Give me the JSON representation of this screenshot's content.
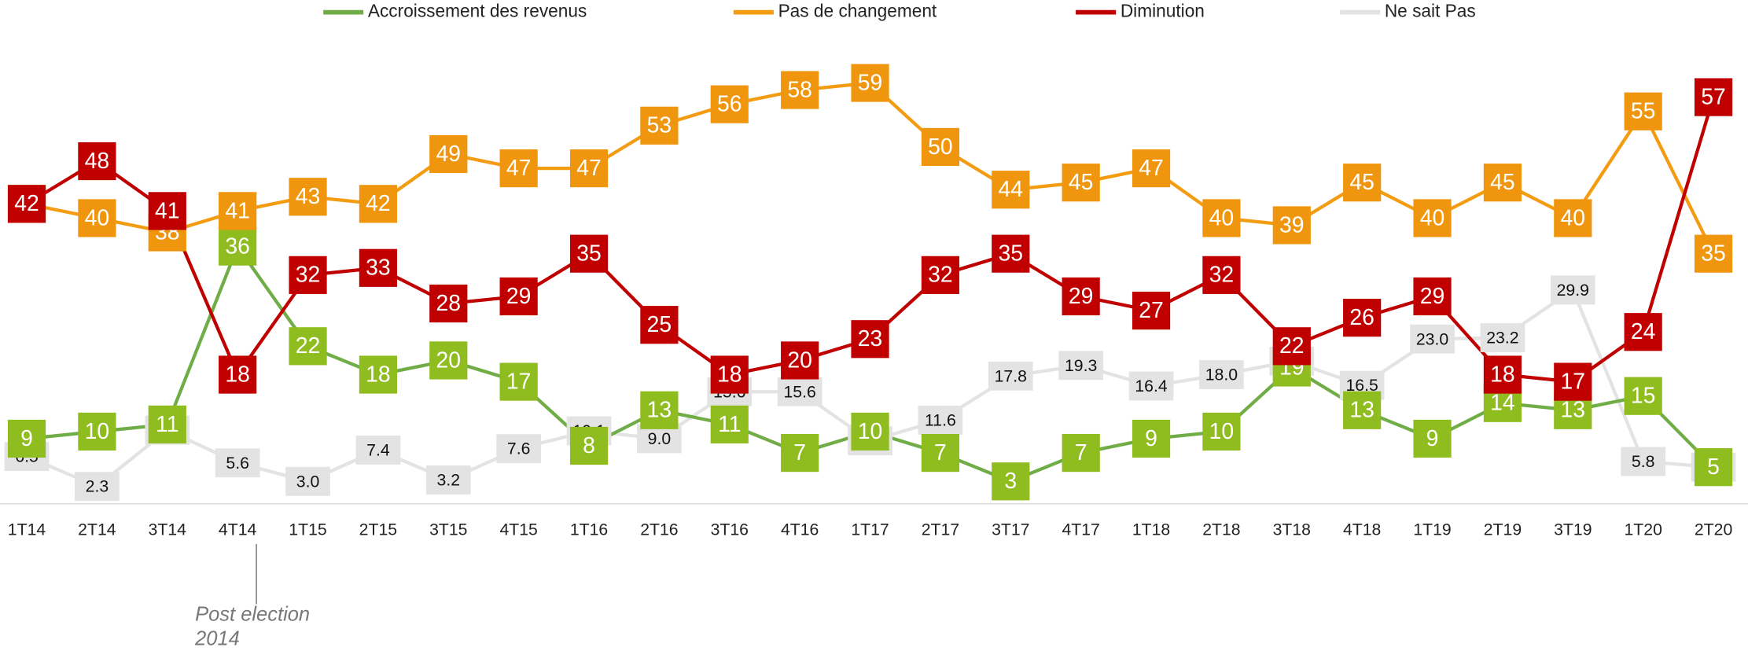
{
  "chart_data": {
    "type": "line",
    "categories": [
      "1T14",
      "2T14",
      "3T14",
      "4T14",
      "1T15",
      "2T15",
      "3T15",
      "4T15",
      "1T16",
      "2T16",
      "3T16",
      "4T16",
      "1T17",
      "2T17",
      "3T17",
      "4T17",
      "1T18",
      "2T18",
      "3T18",
      "4T18",
      "1T19",
      "2T19",
      "3T19",
      "1T20",
      "2T20"
    ],
    "series": [
      {
        "name": "Accroissement des revenus",
        "color": "#70ad47",
        "label_color": "#8fbc1e",
        "values": [
          9,
          10,
          11,
          36,
          22,
          18,
          20,
          17,
          8,
          13,
          11,
          7,
          10,
          7,
          3,
          7,
          9,
          10,
          19,
          13,
          9,
          14,
          13,
          15,
          5
        ]
      },
      {
        "name": "Pas de changement",
        "color": "#f39c12",
        "label_color": "#f0960e",
        "values": [
          42,
          40,
          38,
          41,
          43,
          42,
          49,
          47,
          47,
          53,
          56,
          58,
          59,
          50,
          44,
          45,
          47,
          40,
          39,
          45,
          40,
          45,
          40,
          55,
          35
        ]
      },
      {
        "name": "Diminution",
        "color": "#c00000",
        "label_color": "#c00000",
        "values": [
          42,
          48,
          41,
          18,
          32,
          33,
          28,
          29,
          35,
          25,
          18,
          20,
          23,
          32,
          35,
          29,
          27,
          32,
          22,
          26,
          29,
          18,
          17,
          24,
          57
        ]
      },
      {
        "name": "Ne sait Pas",
        "color": "#e3e3e3",
        "label_color": "#e3e3e3",
        "values": [
          6.5,
          2.3,
          10.2,
          5.6,
          3.0,
          7.4,
          3.2,
          7.6,
          10.1,
          9.0,
          15.6,
          15.6,
          8.7,
          11.6,
          17.8,
          19.3,
          16.4,
          18.0,
          19.9,
          16.5,
          23.0,
          23.2,
          29.9,
          5.8,
          5
        ],
        "value_labels": [
          "6.5",
          "2.3",
          "10.2",
          "5.6",
          "3.0",
          "7.4",
          "3.2",
          "7.6",
          "10.1",
          "9.0",
          "15.6",
          "15.6",
          "8.7",
          "11.6",
          "17.8",
          "19.3",
          "16.4",
          "18.0",
          "19.9",
          "16.5",
          "23.0",
          "23.2",
          "29.9",
          "5.8",
          "5"
        ]
      }
    ],
    "ylim": [
      0,
      60
    ],
    "legend": "top",
    "annotation": [
      "Post election",
      "2014"
    ]
  }
}
